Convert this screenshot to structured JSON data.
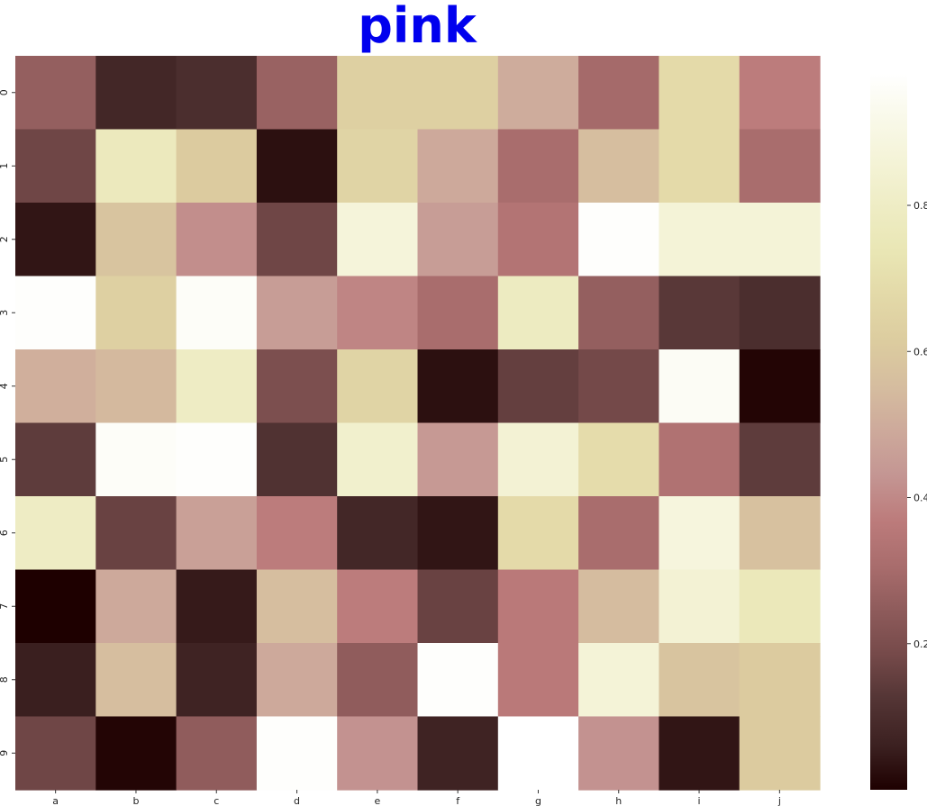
{
  "chart_data": {
    "type": "heatmap",
    "title": "pink",
    "colormap": "pink",
    "title_color": "#0000ee",
    "x_categories": [
      "a",
      "b",
      "c",
      "d",
      "e",
      "f",
      "g",
      "h",
      "i",
      "j"
    ],
    "y_categories": [
      "0",
      "1",
      "2",
      "3",
      "4",
      "5",
      "6",
      "7",
      "8",
      "9"
    ],
    "values": [
      [
        0.26,
        0.08,
        0.1,
        0.27,
        0.63,
        0.63,
        0.5,
        0.3,
        0.68,
        0.37
      ],
      [
        0.17,
        0.77,
        0.61,
        0.03,
        0.65,
        0.49,
        0.31,
        0.56,
        0.68,
        0.31
      ],
      [
        0.04,
        0.58,
        0.41,
        0.17,
        0.87,
        0.45,
        0.34,
        0.97,
        0.86,
        0.86
      ],
      [
        0.97,
        0.63,
        0.96,
        0.45,
        0.39,
        0.31,
        0.79,
        0.26,
        0.13,
        0.1
      ],
      [
        0.51,
        0.54,
        0.8,
        0.2,
        0.65,
        0.03,
        0.15,
        0.18,
        0.95,
        0.01
      ],
      [
        0.14,
        0.96,
        0.97,
        0.11,
        0.83,
        0.44,
        0.85,
        0.69,
        0.33,
        0.14
      ],
      [
        0.8,
        0.16,
        0.46,
        0.37,
        0.08,
        0.04,
        0.68,
        0.31,
        0.88,
        0.57
      ],
      [
        0.0,
        0.49,
        0.05,
        0.56,
        0.37,
        0.16,
        0.36,
        0.55,
        0.85,
        0.76
      ],
      [
        0.06,
        0.56,
        0.07,
        0.49,
        0.25,
        0.97,
        0.36,
        0.86,
        0.58,
        0.61
      ],
      [
        0.17,
        0.01,
        0.25,
        0.97,
        0.42,
        0.07,
        0.98,
        0.42,
        0.04,
        0.61
      ]
    ],
    "vmin": 0.0,
    "vmax": 0.98,
    "colorbar_ticks": [
      0.2,
      0.4,
      0.6,
      0.8
    ],
    "colorbar_tick_labels": [
      "0.2",
      "0.4",
      "0.6",
      "0.8"
    ]
  }
}
